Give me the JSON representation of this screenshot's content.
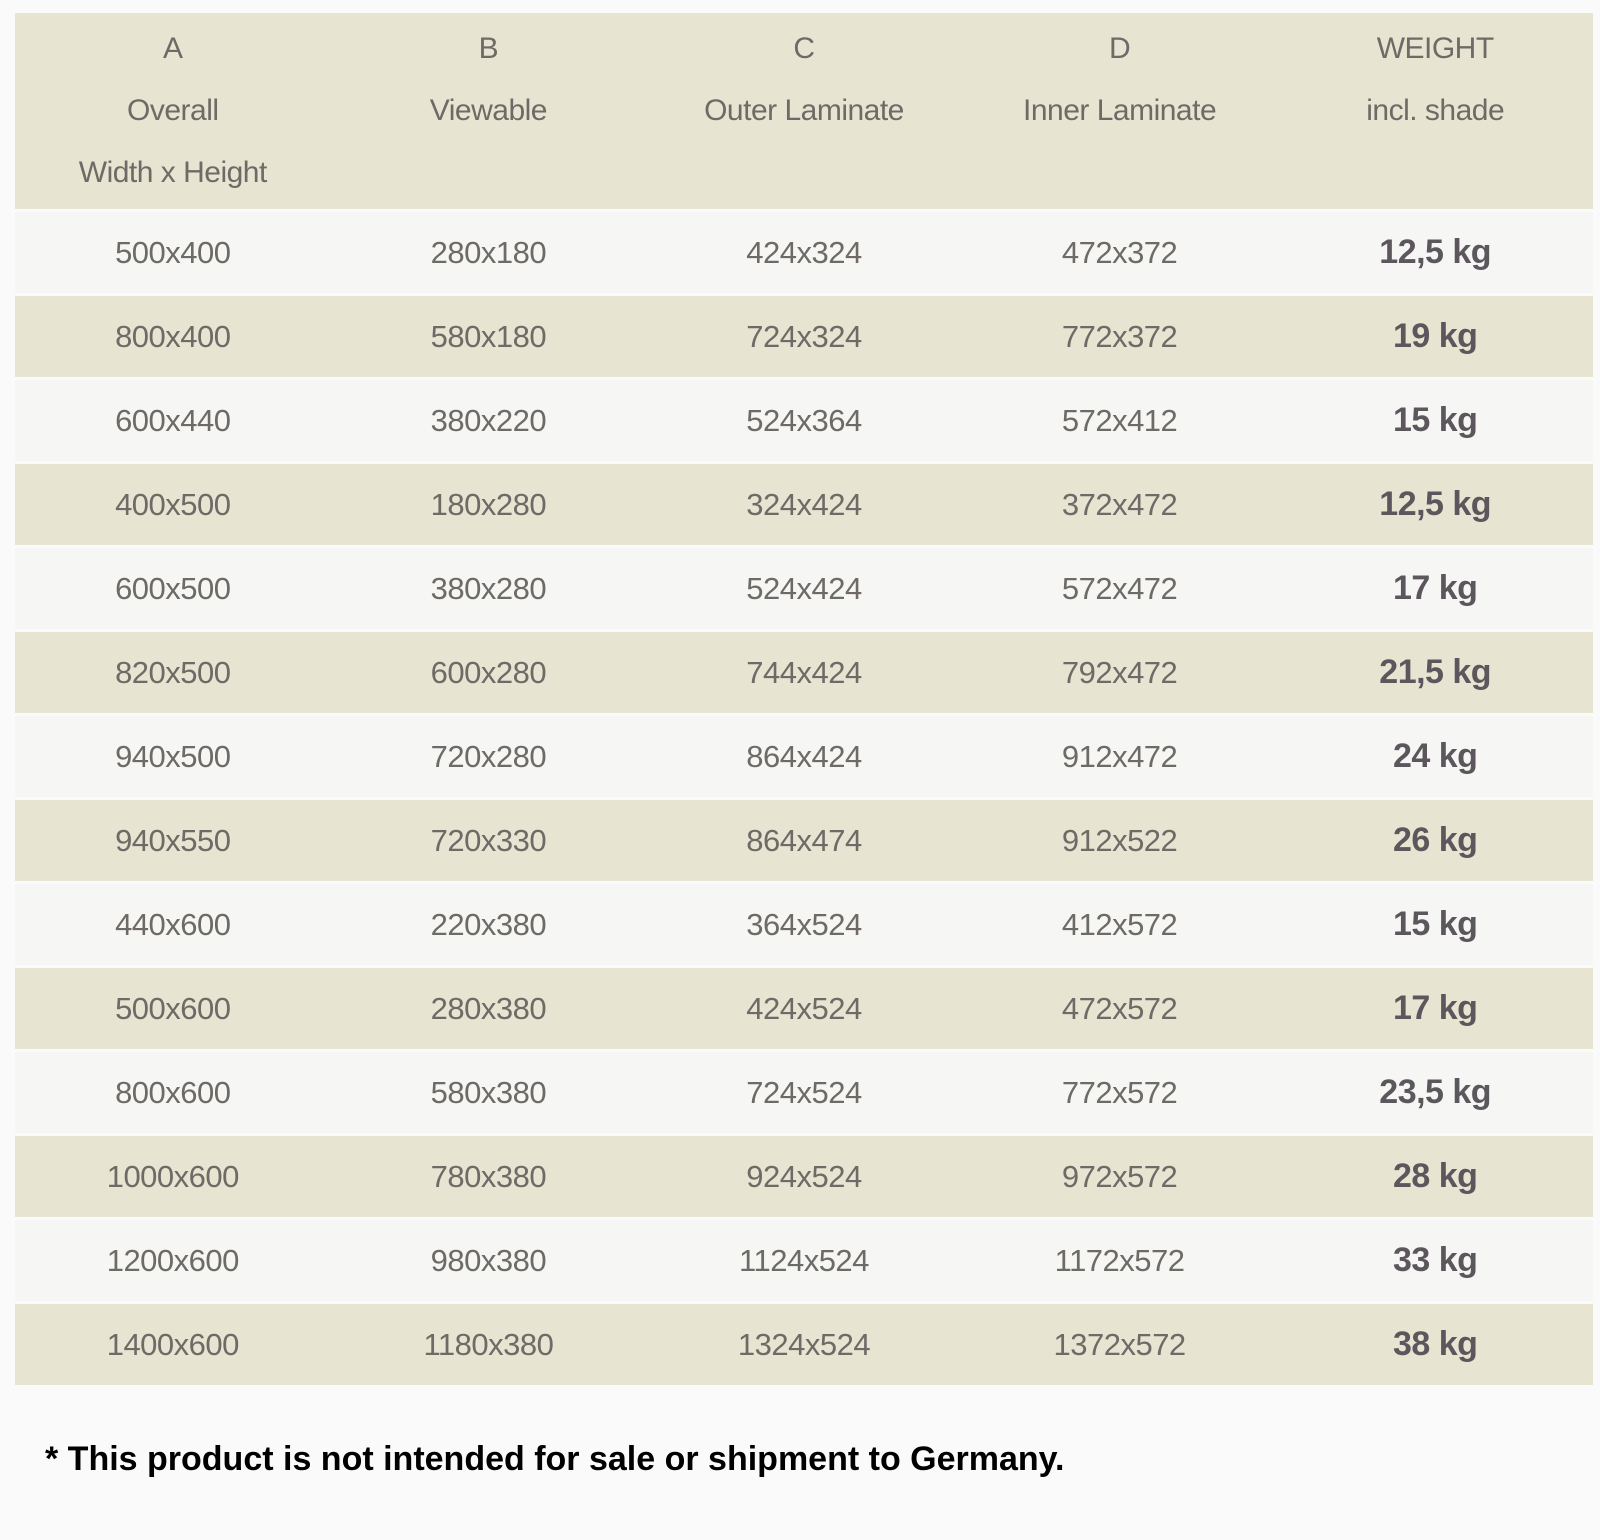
{
  "table": {
    "columns": [
      {
        "letter": "A",
        "label": "Overall",
        "sublabel": "Width x Height"
      },
      {
        "letter": "B",
        "label": "Viewable",
        "sublabel": ""
      },
      {
        "letter": "C",
        "label": "Outer Laminate",
        "sublabel": ""
      },
      {
        "letter": "D",
        "label": "Inner Laminate",
        "sublabel": ""
      },
      {
        "letter": "WEIGHT",
        "label": "incl. shade",
        "sublabel": ""
      }
    ],
    "rows": [
      [
        "500x400",
        "280x180",
        "424x324",
        "472x372",
        "12,5 kg"
      ],
      [
        "800x400",
        "580x180",
        "724x324",
        "772x372",
        "19 kg"
      ],
      [
        "600x440",
        "380x220",
        "524x364",
        "572x412",
        "15 kg"
      ],
      [
        "400x500",
        "180x280",
        "324x424",
        "372x472",
        "12,5 kg"
      ],
      [
        "600x500",
        "380x280",
        "524x424",
        "572x472",
        "17 kg"
      ],
      [
        "820x500",
        "600x280",
        "744x424",
        "792x472",
        "21,5 kg"
      ],
      [
        "940x500",
        "720x280",
        "864x424",
        "912x472",
        "24 kg"
      ],
      [
        "940x550",
        "720x330",
        "864x474",
        "912x522",
        "26 kg"
      ],
      [
        "440x600",
        "220x380",
        "364x524",
        "412x572",
        "15 kg"
      ],
      [
        "500x600",
        "280x380",
        "424x524",
        "472x572",
        "17 kg"
      ],
      [
        "800x600",
        "580x380",
        "724x524",
        "772x572",
        "23,5 kg"
      ],
      [
        "1000x600",
        "780x380",
        "924x524",
        "972x572",
        "28 kg"
      ],
      [
        "1200x600",
        "980x380",
        "1124x524",
        "1172x572",
        "33 kg"
      ],
      [
        "1400x600",
        "1180x380",
        "1324x524",
        "1372x572",
        "38 kg"
      ]
    ]
  },
  "footnote": "* This product is not intended for sale or shipment to Germany.",
  "colors": {
    "page_background": "#fafafb",
    "row_beige": "#e7e4d2",
    "row_light": "#f6f6f5",
    "cell_text": "#6e6a66",
    "weight_text": "#5c575c",
    "footnote_text": "#000000"
  }
}
